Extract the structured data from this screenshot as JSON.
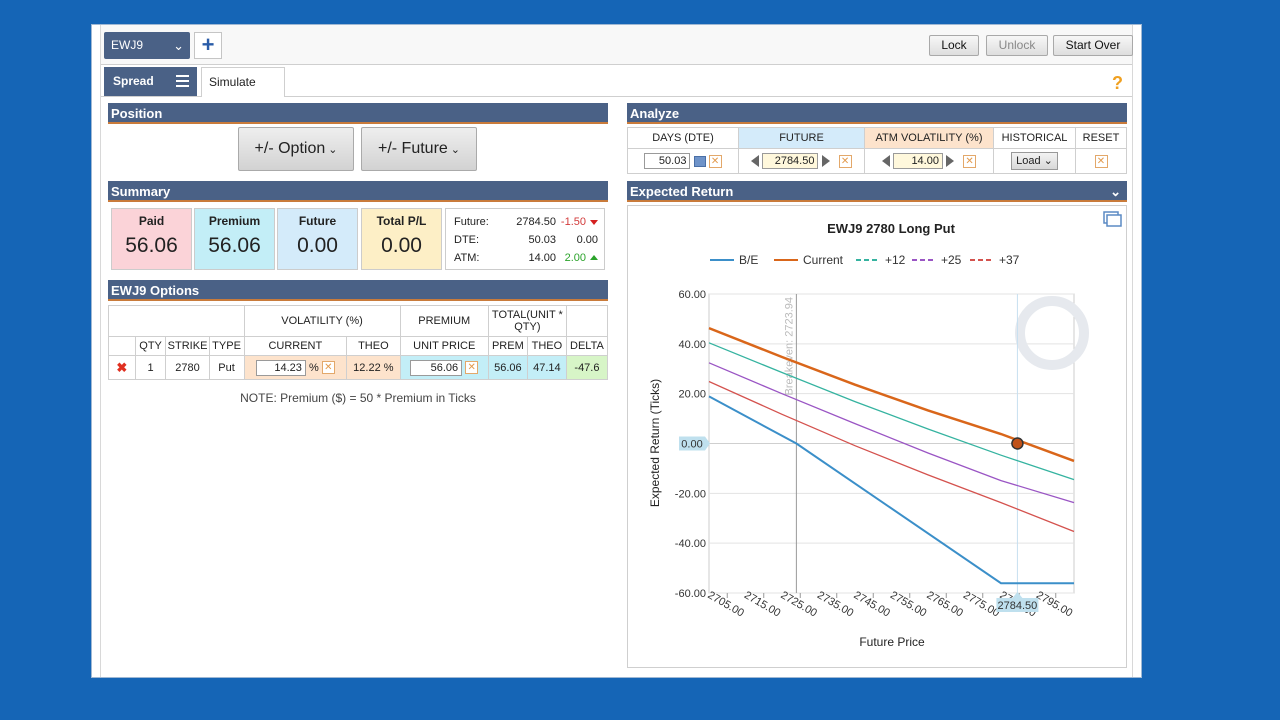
{
  "toolbar": {
    "symbol": "EWJ9",
    "add_label": "+",
    "lock_label": "Lock",
    "unlock_label": "Unlock",
    "start_over_label": "Start Over"
  },
  "tabs": {
    "spread_label": "Spread",
    "simulate_label": "Simulate",
    "help_glyph": "?"
  },
  "position": {
    "header": "Position",
    "option_button": "+/- Option",
    "future_button": "+/- Future"
  },
  "summary": {
    "header": "Summary",
    "paid_label": "Paid",
    "paid_value": "56.06",
    "premium_label": "Premium",
    "premium_value": "56.06",
    "future_label": "Future",
    "future_value": "0.00",
    "pl_label": "Total P/L",
    "pl_value": "0.00",
    "details": {
      "future_key": "Future:",
      "future_val": "2784.50",
      "future_delta": "-1.50",
      "dte_key": "DTE:",
      "dte_val": "50.03",
      "dte_delta": "0.00",
      "atm_key": "ATM:",
      "atm_val": "14.00",
      "atm_delta": "2.00"
    }
  },
  "options": {
    "header": "EWJ9 Options",
    "group_headers": {
      "volatility": "VOLATILITY (%)",
      "premium": "PREMIUM",
      "total": "TOTAL(UNIT * QTY)"
    },
    "columns": [
      "QTY",
      "STRIKE",
      "TYPE",
      "CURRENT",
      "THEO",
      "UNIT PRICE",
      "PREM",
      "THEO",
      "DELTA"
    ],
    "row": {
      "qty": "1",
      "strike": "2780",
      "type": "Put",
      "current_vol": "14.23",
      "pct": "%",
      "theo_vol": "12.22 %",
      "unit_price": "56.06",
      "prem": "56.06",
      "theo": "47.14",
      "delta": "-47.6"
    },
    "note": "NOTE: Premium ($) = 50 * Premium in Ticks"
  },
  "analyze": {
    "header": "Analyze",
    "columns": [
      "DAYS (DTE)",
      "FUTURE",
      "ATM VOLATILITY (%)",
      "HISTORICAL",
      "RESET"
    ],
    "days_value": "50.03",
    "future_value": "2784.50",
    "atm_value": "14.00",
    "load_label": "Load"
  },
  "expected_return": {
    "header": "Expected Return"
  },
  "chart_data": {
    "type": "line",
    "title": "EWJ9 2780 Long Put",
    "xlabel": "Future Price",
    "ylabel": "Expected Return (Ticks)",
    "xlim": [
      2700,
      2800
    ],
    "ylim": [
      -60,
      60
    ],
    "x_ticks": [
      "2705.00",
      "2715.00",
      "2725.00",
      "2735.00",
      "2745.00",
      "2755.00",
      "2765.00",
      "2775.00",
      "2785.00",
      "2795.00"
    ],
    "y_ticks": [
      "60.00",
      "40.00",
      "20.00",
      "0.00",
      "-20.00",
      "-40.00",
      "-60.00"
    ],
    "zero_label": "0.00",
    "breakeven_label": "Breakeven: 2723.94",
    "breakeven_x": 2723.94,
    "current_price": 2784.5,
    "current_price_label": "2784.50",
    "current_point": {
      "x": 2784.5,
      "y": 0
    },
    "legend_position": "top",
    "series": [
      {
        "name": "B/E",
        "color": "#3b8fc9",
        "dash": false,
        "x": [
          2700,
          2723.94,
          2780,
          2800
        ],
        "y": [
          18.9,
          0,
          -56.06,
          -56.06
        ]
      },
      {
        "name": "Current",
        "color": "#d9661a",
        "dash": false,
        "x": [
          2700,
          2720,
          2740,
          2760,
          2780,
          2800
        ],
        "y": [
          46.3,
          34.7,
          23.6,
          13.3,
          3.8,
          -7.0
        ]
      },
      {
        "name": "+12",
        "color": "#35b3a0",
        "dash": true,
        "x": [
          2700,
          2720,
          2740,
          2760,
          2780,
          2800
        ],
        "y": [
          40.4,
          28.5,
          16.8,
          5.8,
          -4.7,
          -14.5
        ]
      },
      {
        "name": "+25",
        "color": "#9a55c4",
        "dash": true,
        "x": [
          2700,
          2720,
          2740,
          2760,
          2780,
          2800
        ],
        "y": [
          32.4,
          20.0,
          8.0,
          -3.8,
          -14.9,
          -23.7
        ]
      },
      {
        "name": "+37",
        "color": "#d4524e",
        "dash": true,
        "x": [
          2700,
          2720,
          2740,
          2760,
          2780,
          2800
        ],
        "y": [
          24.9,
          11.7,
          -0.9,
          -12.6,
          -23.7,
          -35.3
        ]
      }
    ]
  }
}
